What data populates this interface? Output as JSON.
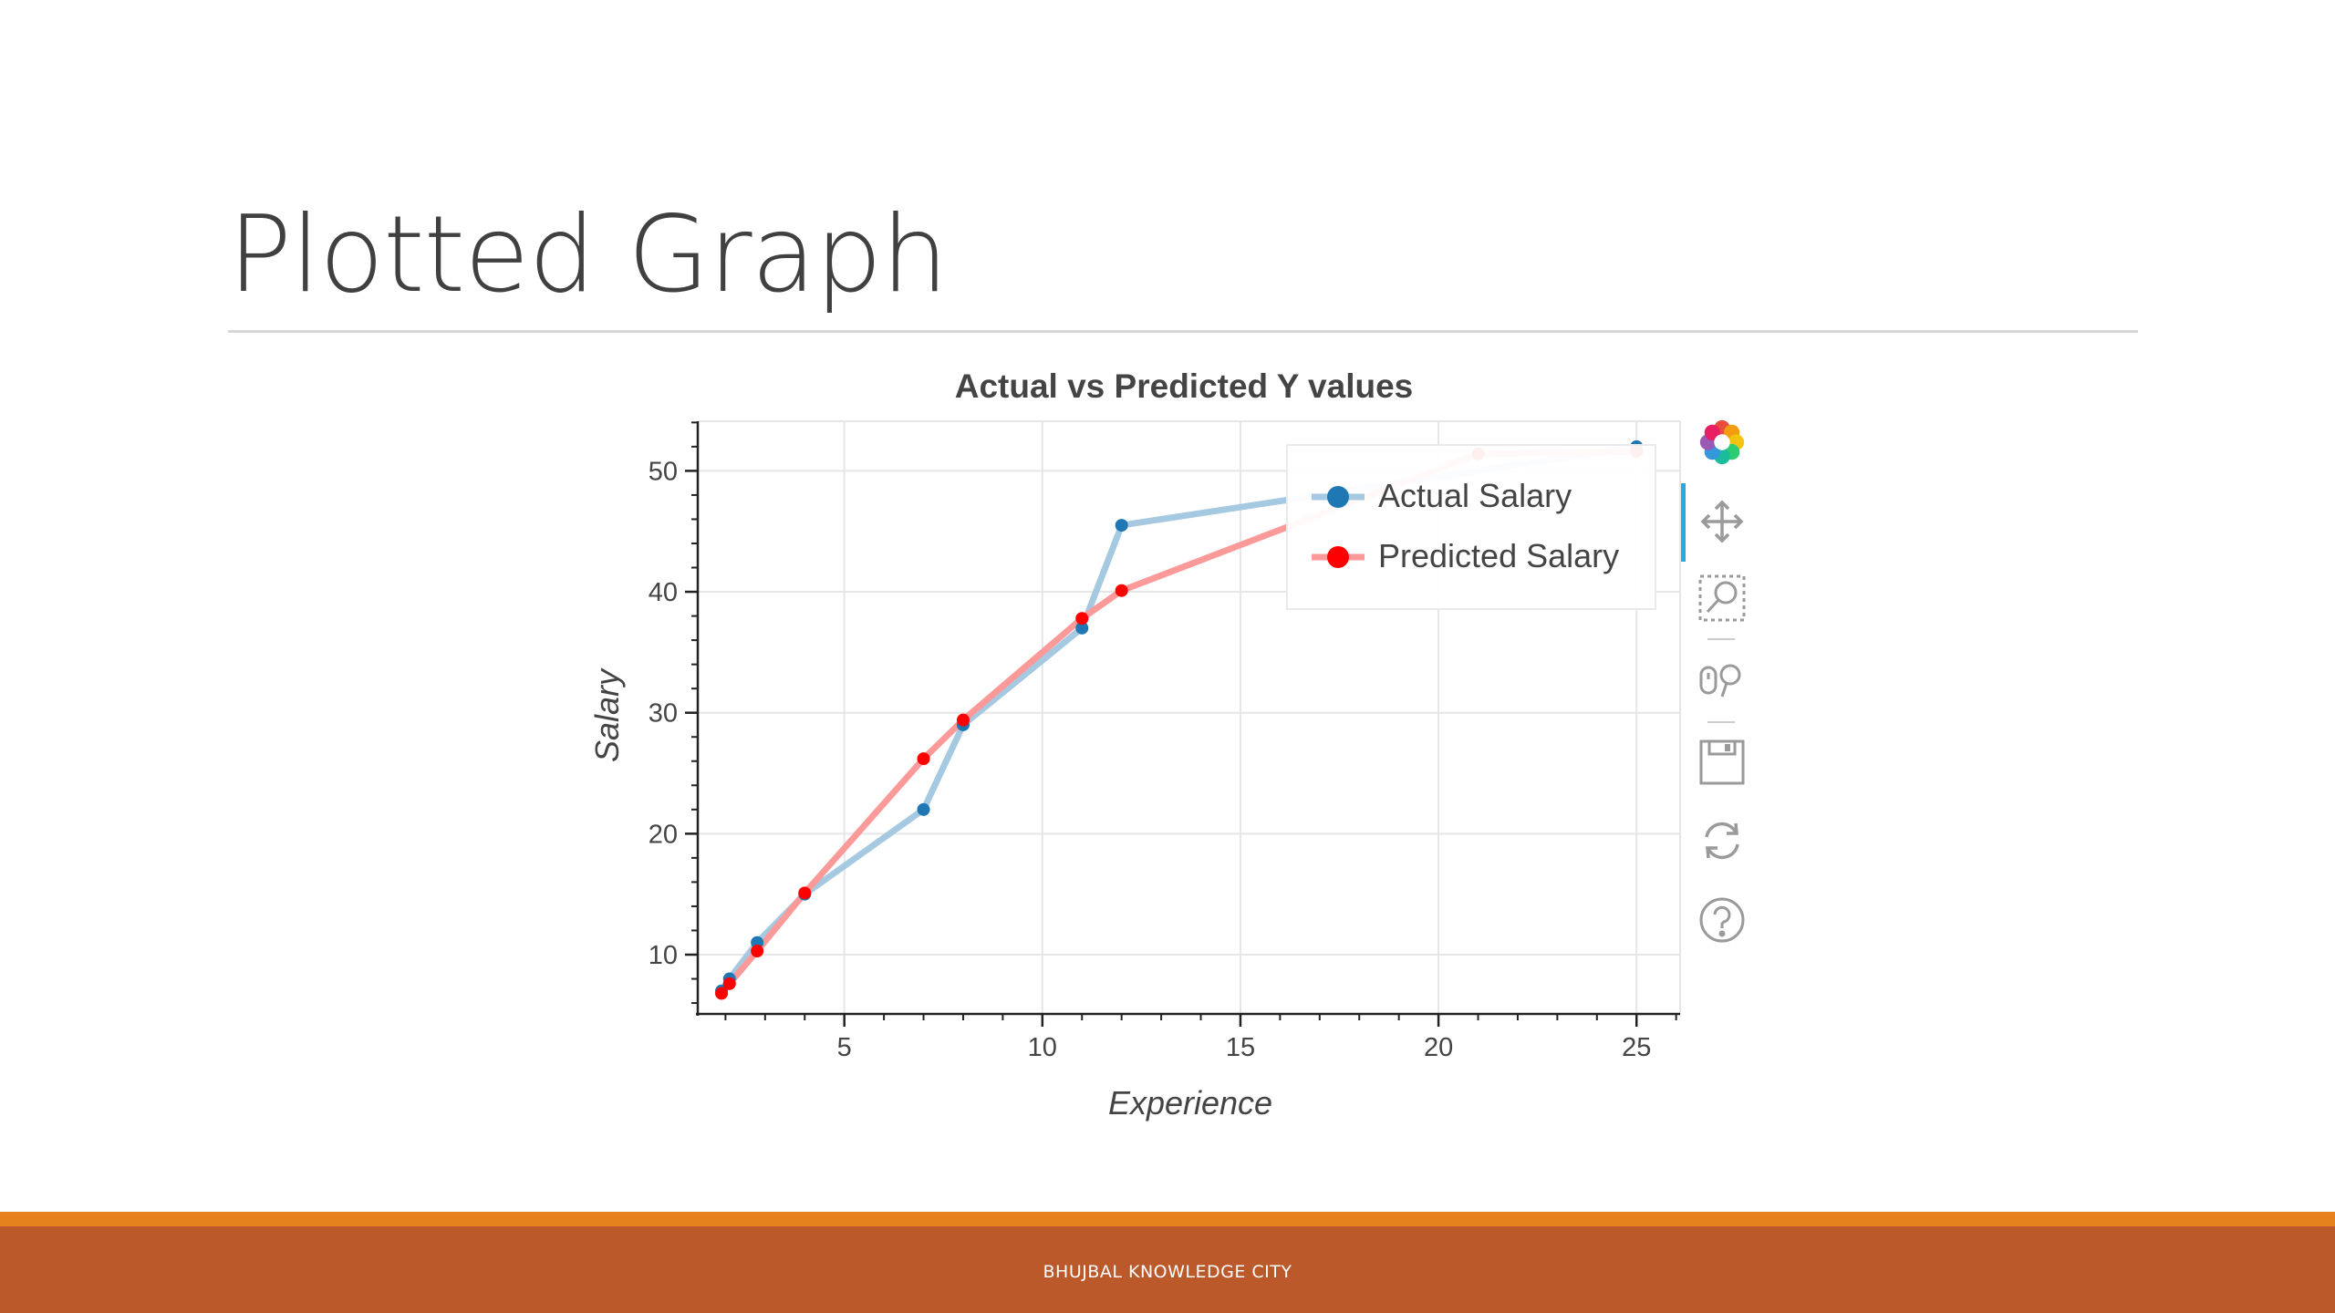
{
  "slide": {
    "title": "Plotted Graph",
    "footer": "BHUJBAL KNOWLEDGE CITY"
  },
  "chart_data": {
    "type": "line",
    "title": "Actual vs Predicted Y values",
    "xlabel": "Experience",
    "ylabel": "Salary",
    "xlim": [
      1.3,
      26.1
    ],
    "ylim": [
      5.1,
      54.1
    ],
    "x_ticks": [
      5,
      10,
      15,
      20,
      25
    ],
    "y_ticks": [
      10,
      20,
      30,
      40,
      50
    ],
    "grid": true,
    "legend_position": "top-right",
    "series": [
      {
        "name": "Actual Salary",
        "color": "#1f77b4",
        "line_color": "#a6c9e2",
        "x": [
          1.9,
          2.1,
          2.8,
          4,
          7,
          8,
          11,
          12,
          25
        ],
        "y": [
          7,
          8,
          11,
          15,
          22,
          29,
          37,
          45.5,
          52
        ]
      },
      {
        "name": "Predicted Salary",
        "color": "#ff0000",
        "line_color": "#fc9a9a",
        "x": [
          1.9,
          2.1,
          2.8,
          4,
          7,
          8,
          11,
          12,
          21,
          25
        ],
        "y": [
          6.8,
          7.6,
          10.3,
          15.1,
          26.2,
          29.4,
          37.8,
          40.1,
          51.4,
          51.6
        ]
      }
    ]
  },
  "toolbar": {
    "items": [
      "bokeh-logo-icon",
      "pan-icon",
      "box-zoom-icon",
      "wheel-zoom-icon",
      "save-icon",
      "reset-icon",
      "help-icon"
    ]
  }
}
